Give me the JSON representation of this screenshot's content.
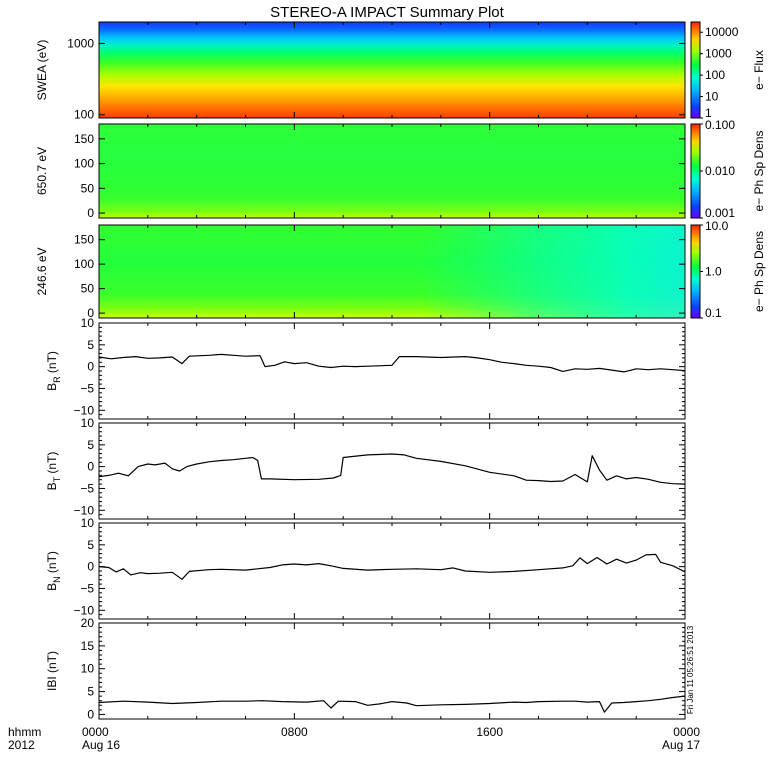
{
  "chart_data": {
    "type": "line",
    "title": "STEREO-A IMPACT Summary Plot",
    "x_axis": {
      "format_label_top": "hhmm",
      "format_label_bottom": "2012",
      "ticks": [
        {
          "hours": 0,
          "top": "0000",
          "bottom": "Aug 16"
        },
        {
          "hours": 8,
          "top": "0800",
          "bottom": ""
        },
        {
          "hours": 16,
          "top": "1600",
          "bottom": ""
        },
        {
          "hours": 24,
          "top": "0000",
          "bottom": "Aug 17"
        }
      ],
      "range_hours": [
        0,
        24
      ]
    },
    "spectrograms": [
      {
        "ylabel": "SWEA (eV)",
        "yscale": "log",
        "yrange": [
          90,
          2000
        ],
        "yticks": [
          "1000",
          "100"
        ],
        "colorbar_label": "e− Flux",
        "colorbar_ticks": [
          "10000",
          "1000",
          "100",
          "10",
          "1"
        ],
        "colorbar_range": [
          1,
          30000
        ]
      },
      {
        "ylabel": "650.7 eV",
        "yscale": "linear",
        "yrange": [
          -10,
          180
        ],
        "yticks": [
          "150",
          "100",
          "50",
          "0"
        ],
        "colorbar_label": "e− Ph Sp Dens",
        "colorbar_ticks": [
          "0.100",
          "0.010",
          "0.001"
        ],
        "colorbar_range": [
          0.001,
          0.1
        ]
      },
      {
        "ylabel": "246.6 eV",
        "yscale": "linear",
        "yrange": [
          -10,
          180
        ],
        "yticks": [
          "150",
          "100",
          "50",
          "0"
        ],
        "colorbar_label": "e− Ph Sp Dens",
        "colorbar_ticks": [
          "10.0",
          "1.0",
          "0.1"
        ],
        "colorbar_range": [
          0.1,
          10
        ]
      }
    ],
    "series": [
      {
        "ylabel": "B",
        "ylabel_sub": "R",
        "ylabel_unit": "(nT)",
        "yrange": [
          -12,
          10
        ],
        "yticks": [
          "10",
          "5",
          "0",
          "−5",
          "−10"
        ],
        "points": [
          [
            0,
            2.2
          ],
          [
            0.5,
            1.8
          ],
          [
            1,
            2.1
          ],
          [
            1.5,
            2.3
          ],
          [
            2,
            1.9
          ],
          [
            2.5,
            2.0
          ],
          [
            3,
            2.2
          ],
          [
            3.4,
            0.7
          ],
          [
            3.7,
            2.4
          ],
          [
            4.5,
            2.6
          ],
          [
            5,
            2.8
          ],
          [
            5.5,
            2.6
          ],
          [
            6,
            2.4
          ],
          [
            6.6,
            2.5
          ],
          [
            6.8,
            0.0
          ],
          [
            7.2,
            0.3
          ],
          [
            7.6,
            1.1
          ],
          [
            8,
            0.7
          ],
          [
            8.5,
            0.9
          ],
          [
            9,
            0.1
          ],
          [
            9.5,
            -0.2
          ],
          [
            10,
            0.1
          ],
          [
            10.5,
            0.0
          ],
          [
            11,
            0.1
          ],
          [
            12,
            0.3
          ],
          [
            12.3,
            2.3
          ],
          [
            13,
            2.3
          ],
          [
            14,
            2.1
          ],
          [
            15,
            2.3
          ],
          [
            15.5,
            2.0
          ],
          [
            16,
            1.6
          ],
          [
            16.5,
            1.0
          ],
          [
            17,
            0.7
          ],
          [
            17.5,
            0.3
          ],
          [
            18,
            0.1
          ],
          [
            18.5,
            -0.2
          ],
          [
            19,
            -1.1
          ],
          [
            19.5,
            -0.5
          ],
          [
            20,
            -0.6
          ],
          [
            20.5,
            -0.4
          ],
          [
            21,
            -0.8
          ],
          [
            21.5,
            -1.2
          ],
          [
            22,
            -0.5
          ],
          [
            22.5,
            -0.7
          ],
          [
            23,
            -0.5
          ],
          [
            23.5,
            -0.7
          ],
          [
            24,
            -0.9
          ]
        ]
      },
      {
        "ylabel": "B",
        "ylabel_sub": "T",
        "ylabel_unit": "(nT)",
        "yrange": [
          -12,
          10
        ],
        "yticks": [
          "10",
          "5",
          "0",
          "−5",
          "−10"
        ],
        "points": [
          [
            0,
            -2.3
          ],
          [
            0.4,
            -2.0
          ],
          [
            0.8,
            -1.5
          ],
          [
            1.2,
            -2.1
          ],
          [
            1.6,
            0.0
          ],
          [
            2,
            0.6
          ],
          [
            2.3,
            0.4
          ],
          [
            2.7,
            0.8
          ],
          [
            3,
            -0.5
          ],
          [
            3.3,
            -1.0
          ],
          [
            3.6,
            0.0
          ],
          [
            4,
            0.6
          ],
          [
            4.5,
            1.1
          ],
          [
            5,
            1.4
          ],
          [
            5.5,
            1.6
          ],
          [
            6,
            1.9
          ],
          [
            6.3,
            2.1
          ],
          [
            6.5,
            1.4
          ],
          [
            6.65,
            -2.8
          ],
          [
            7,
            -2.8
          ],
          [
            8,
            -3.0
          ],
          [
            9,
            -2.9
          ],
          [
            9.6,
            -2.6
          ],
          [
            9.9,
            -2.0
          ],
          [
            10,
            2.1
          ],
          [
            11,
            2.7
          ],
          [
            12,
            2.9
          ],
          [
            12.5,
            2.7
          ],
          [
            13,
            1.9
          ],
          [
            14,
            1.2
          ],
          [
            15,
            0.2
          ],
          [
            16,
            -1.3
          ],
          [
            17,
            -2.1
          ],
          [
            17.5,
            -3.1
          ],
          [
            18,
            -3.2
          ],
          [
            18.5,
            -3.4
          ],
          [
            19,
            -3.3
          ],
          [
            19.5,
            -1.8
          ],
          [
            20,
            -3.5
          ],
          [
            20.2,
            2.5
          ],
          [
            20.5,
            -0.8
          ],
          [
            20.8,
            -3.1
          ],
          [
            21.2,
            -2.1
          ],
          [
            21.6,
            -2.8
          ],
          [
            22,
            -2.5
          ],
          [
            22.5,
            -2.9
          ],
          [
            23,
            -3.6
          ],
          [
            23.5,
            -3.9
          ],
          [
            24,
            -4.0
          ]
        ]
      },
      {
        "ylabel": "B",
        "ylabel_sub": "N",
        "ylabel_unit": "(nT)",
        "yrange": [
          -12,
          10
        ],
        "yticks": [
          "10",
          "5",
          "0",
          "−5",
          "−10"
        ],
        "points": [
          [
            0,
            0.0
          ],
          [
            0.4,
            -0.2
          ],
          [
            0.7,
            -1.2
          ],
          [
            1,
            -0.5
          ],
          [
            1.3,
            -1.9
          ],
          [
            1.7,
            -1.4
          ],
          [
            2,
            -1.6
          ],
          [
            2.5,
            -1.5
          ],
          [
            3,
            -1.3
          ],
          [
            3.4,
            -2.9
          ],
          [
            3.7,
            -1.1
          ],
          [
            4.5,
            -0.7
          ],
          [
            5,
            -0.6
          ],
          [
            6,
            -0.8
          ],
          [
            6.5,
            -0.5
          ],
          [
            7,
            -0.2
          ],
          [
            7.5,
            0.4
          ],
          [
            8,
            0.6
          ],
          [
            8.5,
            0.4
          ],
          [
            9,
            0.7
          ],
          [
            9.5,
            0.2
          ],
          [
            10,
            -0.4
          ],
          [
            11,
            -0.8
          ],
          [
            12,
            -0.6
          ],
          [
            13,
            -0.5
          ],
          [
            14,
            -0.7
          ],
          [
            14.5,
            -0.3
          ],
          [
            15,
            -1.0
          ],
          [
            16,
            -1.3
          ],
          [
            17,
            -1.1
          ],
          [
            18,
            -0.7
          ],
          [
            19,
            -0.3
          ],
          [
            19.4,
            0.2
          ],
          [
            19.7,
            2.0
          ],
          [
            20,
            0.7
          ],
          [
            20.4,
            2.1
          ],
          [
            20.8,
            0.6
          ],
          [
            21.2,
            1.7
          ],
          [
            21.6,
            0.8
          ],
          [
            22,
            1.5
          ],
          [
            22.4,
            2.7
          ],
          [
            22.8,
            2.8
          ],
          [
            23,
            1.0
          ],
          [
            23.5,
            0.2
          ],
          [
            24,
            -1.2
          ]
        ]
      },
      {
        "ylabel": "IBI",
        "ylabel_sub": "",
        "ylabel_unit": "(nT)",
        "yrange": [
          -1,
          20
        ],
        "yticks": [
          "20",
          "15",
          "10",
          "5",
          "0"
        ],
        "points": [
          [
            0,
            2.6
          ],
          [
            1,
            2.9
          ],
          [
            2,
            2.7
          ],
          [
            3,
            2.4
          ],
          [
            4,
            2.6
          ],
          [
            5,
            2.9
          ],
          [
            6,
            2.9
          ],
          [
            6.7,
            3.0
          ],
          [
            7.5,
            2.8
          ],
          [
            8.5,
            2.7
          ],
          [
            9.2,
            3.0
          ],
          [
            9.5,
            1.4
          ],
          [
            9.8,
            2.9
          ],
          [
            10.5,
            2.8
          ],
          [
            11,
            2.0
          ],
          [
            11.5,
            2.3
          ],
          [
            12,
            2.8
          ],
          [
            12.6,
            2.5
          ],
          [
            13,
            1.9
          ],
          [
            14,
            2.1
          ],
          [
            15,
            2.2
          ],
          [
            16,
            2.4
          ],
          [
            17,
            2.7
          ],
          [
            17.5,
            2.6
          ],
          [
            18,
            2.8
          ],
          [
            19,
            2.9
          ],
          [
            19.5,
            2.9
          ],
          [
            20,
            2.7
          ],
          [
            20.5,
            2.8
          ],
          [
            20.7,
            0.5
          ],
          [
            21,
            2.5
          ],
          [
            21.5,
            2.6
          ],
          [
            22,
            2.8
          ],
          [
            22.5,
            3.0
          ],
          [
            23,
            3.3
          ],
          [
            23.5,
            3.7
          ],
          [
            24,
            4.0
          ]
        ]
      }
    ],
    "side_stamp": "Fri Jan 11 05:26:51 2013"
  }
}
